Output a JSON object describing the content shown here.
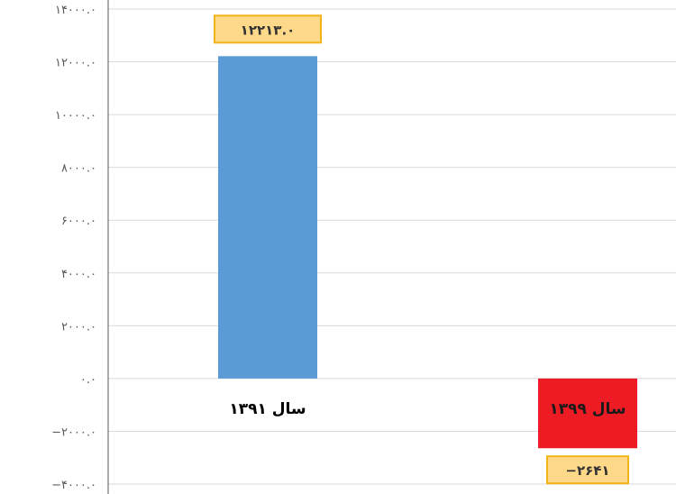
{
  "chart_data": {
    "type": "bar",
    "title": "",
    "xlabel": "",
    "ylabel": "",
    "categories": [
      "سال ۱۳۹۱",
      "سال ۱۳۹۹"
    ],
    "values": [
      12213.0,
      -2641
    ],
    "data_labels": [
      "۱۲۲۱۳.۰",
      "−۲۶۴۱"
    ],
    "ylim": [
      -4000,
      14000
    ],
    "yticks": [
      -4000,
      -2000,
      0,
      2000,
      4000,
      6000,
      8000,
      10000,
      12000,
      14000
    ],
    "ytick_labels": [
      "−۴۰۰۰.۰",
      "−۲۰۰۰.۰",
      "۰.۰",
      "۲۰۰۰.۰",
      "۴۰۰۰.۰",
      "۶۰۰۰.۰",
      "۸۰۰۰.۰",
      "۱۰۰۰۰.۰",
      "۱۲۰۰۰.۰",
      "۱۴۰۰۰.۰"
    ],
    "grid": true,
    "bar_colors": [
      "#5b9bd5",
      "#ed1c24"
    ],
    "label_box_fill": "#ffd98a",
    "label_box_stroke": "#f2b318"
  }
}
